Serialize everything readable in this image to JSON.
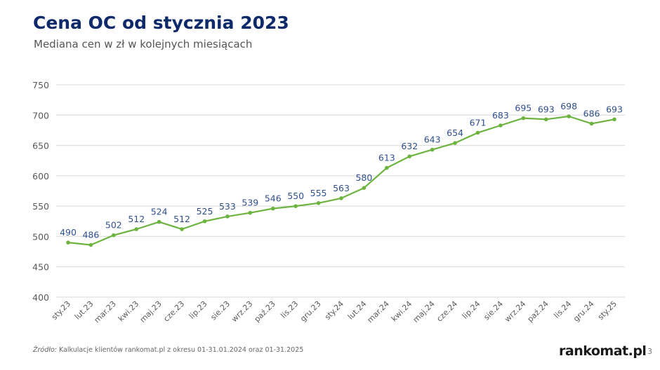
{
  "header": {
    "title": "Cena OC od stycznia 2023",
    "subtitle": "Mediana cen w zł w kolejnych miesiącach"
  },
  "footer": {
    "source_label": "Źródło:",
    "source_text": " Kalkulacje klientów rankomat.pl z okresu 01-31.01.2024 oraz 01-31.2025",
    "logo": "rankomat.pl",
    "page_number": "3"
  },
  "colors": {
    "title": "#0f2a6b",
    "line": "#6db33f",
    "data_label": "#2f4f8f",
    "grid": "#d9d9d9"
  },
  "chart_data": {
    "type": "line",
    "title": "Cena OC od stycznia 2023",
    "subtitle": "Mediana cen w zł w kolejnych miesiącach",
    "xlabel": "",
    "ylabel": "",
    "ylim": [
      400,
      750
    ],
    "yticks": [
      400,
      450,
      500,
      550,
      600,
      650,
      700,
      750
    ],
    "grid": true,
    "legend": "none",
    "categories": [
      "sty.23",
      "lut.23",
      "mar.23",
      "kwi.23",
      "maj.23",
      "cze.23",
      "lip.23",
      "sie.23",
      "wrz.23",
      "paź.23",
      "lis.23",
      "gru.23",
      "sty.24",
      "lut.24",
      "mar.24",
      "kwi.24",
      "maj.24",
      "cze.24",
      "lip.24",
      "sie.24",
      "wrz.24",
      "paź.24",
      "lis.24",
      "gru.24",
      "sty.25"
    ],
    "series": [
      {
        "values": [
          490,
          486,
          502,
          512,
          524,
          512,
          525,
          533,
          539,
          546,
          550,
          555,
          563,
          580,
          613,
          632,
          643,
          654,
          671,
          683,
          695,
          693,
          698,
          686,
          693
        ]
      }
    ]
  }
}
